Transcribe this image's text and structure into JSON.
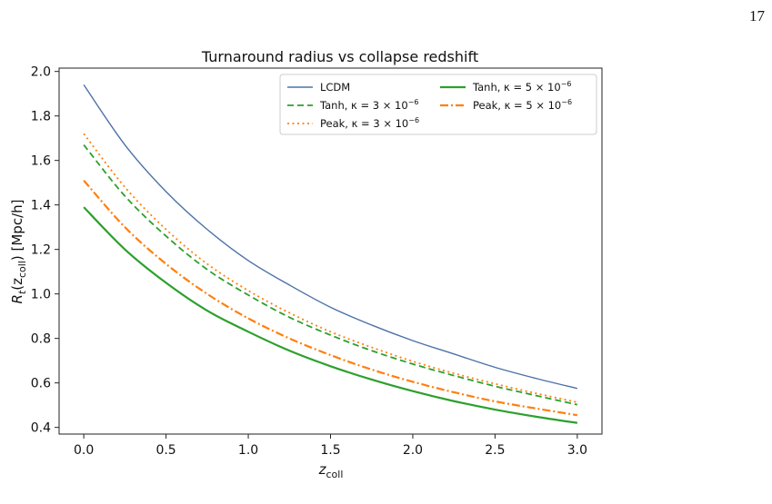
{
  "page": {
    "number": "17"
  },
  "chart_data": {
    "type": "line",
    "title": "Turnaround radius vs collapse redshift",
    "xlabel": {
      "main": "z",
      "sub": "coll"
    },
    "ylabel": {
      "pre": "R",
      "sub1": "t",
      "mid": "(z",
      "sub2": "coll",
      "post": ") [Mpc/h]"
    },
    "xlim": [
      -0.15,
      3.15
    ],
    "ylim": [
      0.37,
      2.015
    ],
    "xticks": [
      0.0,
      0.5,
      1.0,
      1.5,
      2.0,
      2.5,
      3.0
    ],
    "xtick_labels": [
      "0.0",
      "0.5",
      "1.0",
      "1.5",
      "2.0",
      "2.5",
      "3.0"
    ],
    "yticks": [
      0.4,
      0.6,
      0.8,
      1.0,
      1.2,
      1.4,
      1.6,
      1.8,
      2.0
    ],
    "ytick_labels": [
      "0.4",
      "0.6",
      "0.8",
      "1.0",
      "1.2",
      "1.4",
      "1.6",
      "1.8",
      "2.0"
    ],
    "grid": false,
    "legend": "top-right",
    "x": [
      0.0,
      0.25,
      0.5,
      0.75,
      1.0,
      1.25,
      1.5,
      1.75,
      2.0,
      2.25,
      2.5,
      2.75,
      3.0
    ],
    "series": [
      {
        "name": "LCDM",
        "kappa": "",
        "color": "#4c72a8",
        "dash": "",
        "width": 1.4,
        "values": [
          1.94,
          1.67,
          1.46,
          1.29,
          1.15,
          1.04,
          0.94,
          0.86,
          0.79,
          0.73,
          0.67,
          0.62,
          0.575
        ]
      },
      {
        "name": "Tanh, κ = 3 × 10",
        "kappa": "−6",
        "color": "#2ca02c",
        "dash": "7,4",
        "width": 1.8,
        "values": [
          1.67,
          1.44,
          1.26,
          1.11,
          0.995,
          0.895,
          0.815,
          0.745,
          0.685,
          0.633,
          0.585,
          0.543,
          0.502
        ]
      },
      {
        "name": "Peak, κ = 3 × 10",
        "kappa": "−6",
        "color": "#ff7f0e",
        "dash": "2,3.5",
        "width": 1.8,
        "values": [
          1.72,
          1.48,
          1.29,
          1.135,
          1.015,
          0.915,
          0.83,
          0.76,
          0.697,
          0.643,
          0.596,
          0.553,
          0.513
        ]
      },
      {
        "name": "Tanh, κ = 5 × 10",
        "kappa": "−6",
        "color": "#2ca02c",
        "dash": "",
        "width": 2.2,
        "values": [
          1.39,
          1.2,
          1.05,
          0.925,
          0.83,
          0.745,
          0.675,
          0.615,
          0.563,
          0.518,
          0.48,
          0.448,
          0.42
        ]
      },
      {
        "name": "Peak, κ = 5 × 10",
        "kappa": "−6",
        "color": "#ff7f0e",
        "dash": "9,3,2,3",
        "width": 2.2,
        "values": [
          1.51,
          1.3,
          1.135,
          1.0,
          0.89,
          0.8,
          0.725,
          0.66,
          0.605,
          0.558,
          0.517,
          0.485,
          0.455
        ]
      }
    ]
  }
}
